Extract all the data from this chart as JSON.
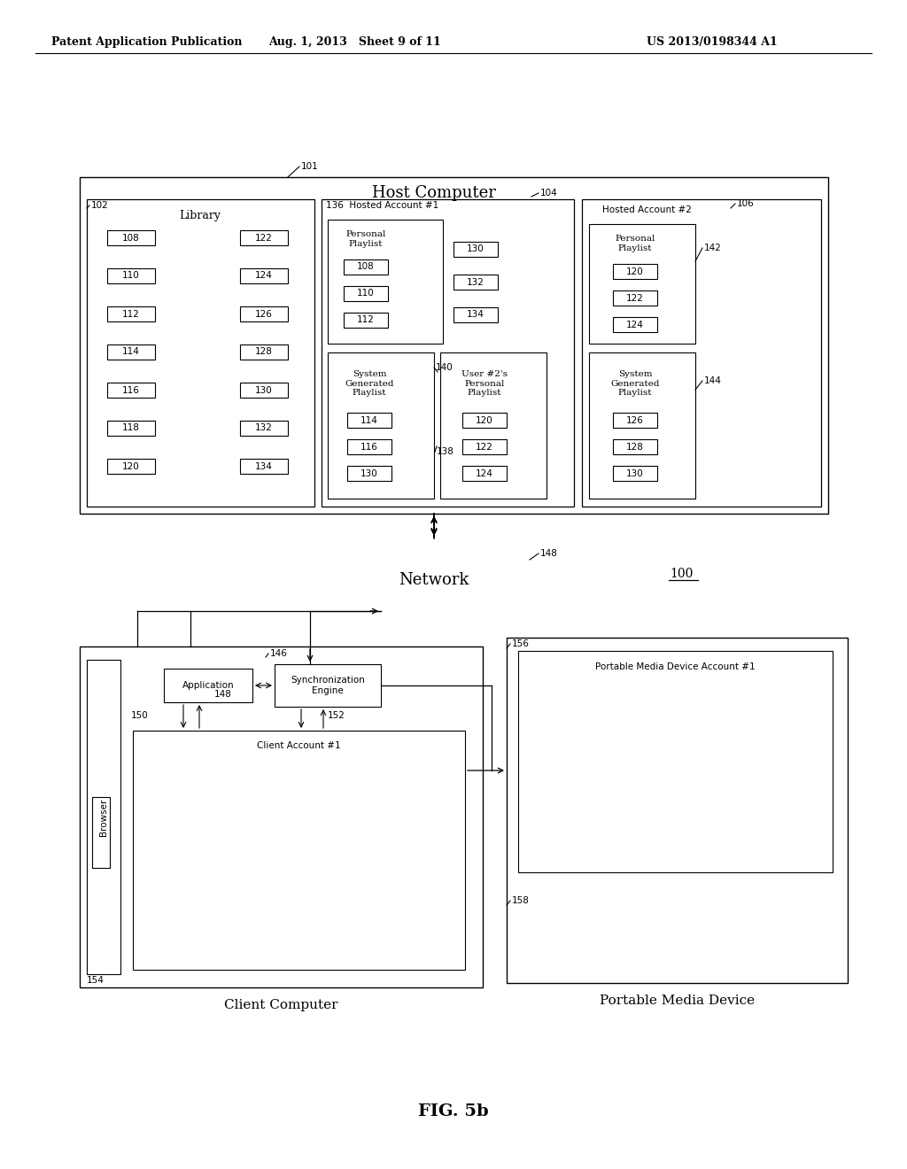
{
  "header_left": "Patent Application Publication",
  "header_mid": "Aug. 1, 2013   Sheet 9 of 11",
  "header_right": "US 2013/0198344 A1",
  "fig_label": "FIG. 5b",
  "ref_100": "100",
  "background": "#ffffff",
  "line_color": "#000000",
  "fig_title": "Host Computer",
  "lib_title": "Library",
  "hosted1_title": "Hosted Account #1",
  "hosted2_title": "Hosted Account #2",
  "network_label": "Network",
  "client_computer_label": "Client Computer",
  "portable_device_label": "Portable Media Device",
  "app_label": "Application",
  "sync_label": "Synchronization\nEngine",
  "client_acct_label": "Client Account #1",
  "browser_label": "Browser",
  "pmd_acct_label": "Portable Media Device Account #1",
  "personal_playlist1": "Personal\nPlaylist",
  "system_gen1": "System\nGenerated\nPlaylist",
  "user2_personal": "User #2's\nPersonal\nPlaylist",
  "personal_playlist2": "Personal\nPlaylist",
  "system_gen2": "System\nGenerated\nPlaylist",
  "ref_101": "101",
  "ref_102": "102",
  "ref_104": "104",
  "ref_106": "106",
  "ref_136": "136",
  "ref_138": "138",
  "ref_140": "140",
  "ref_142": "142",
  "ref_144": "144",
  "ref_146": "146",
  "ref_148_net": "148",
  "ref_148_arrow": "148",
  "ref_150": "150",
  "ref_152": "152",
  "ref_154": "154",
  "ref_156": "156",
  "ref_158": "158",
  "lib_items_left": [
    "108",
    "110",
    "112",
    "114",
    "116",
    "118",
    "120"
  ],
  "lib_items_right": [
    "122",
    "124",
    "126",
    "128",
    "130",
    "132",
    "134"
  ],
  "personal1_items": [
    "108",
    "110",
    "112"
  ],
  "personal1_right": [
    "130",
    "132",
    "134"
  ],
  "sys_gen1_items": [
    "114",
    "116",
    "130"
  ],
  "user2_items": [
    "120",
    "122",
    "124"
  ],
  "personal2_items": [
    "120",
    "122",
    "124"
  ],
  "sys_gen2_items": [
    "126",
    "128",
    "130"
  ]
}
